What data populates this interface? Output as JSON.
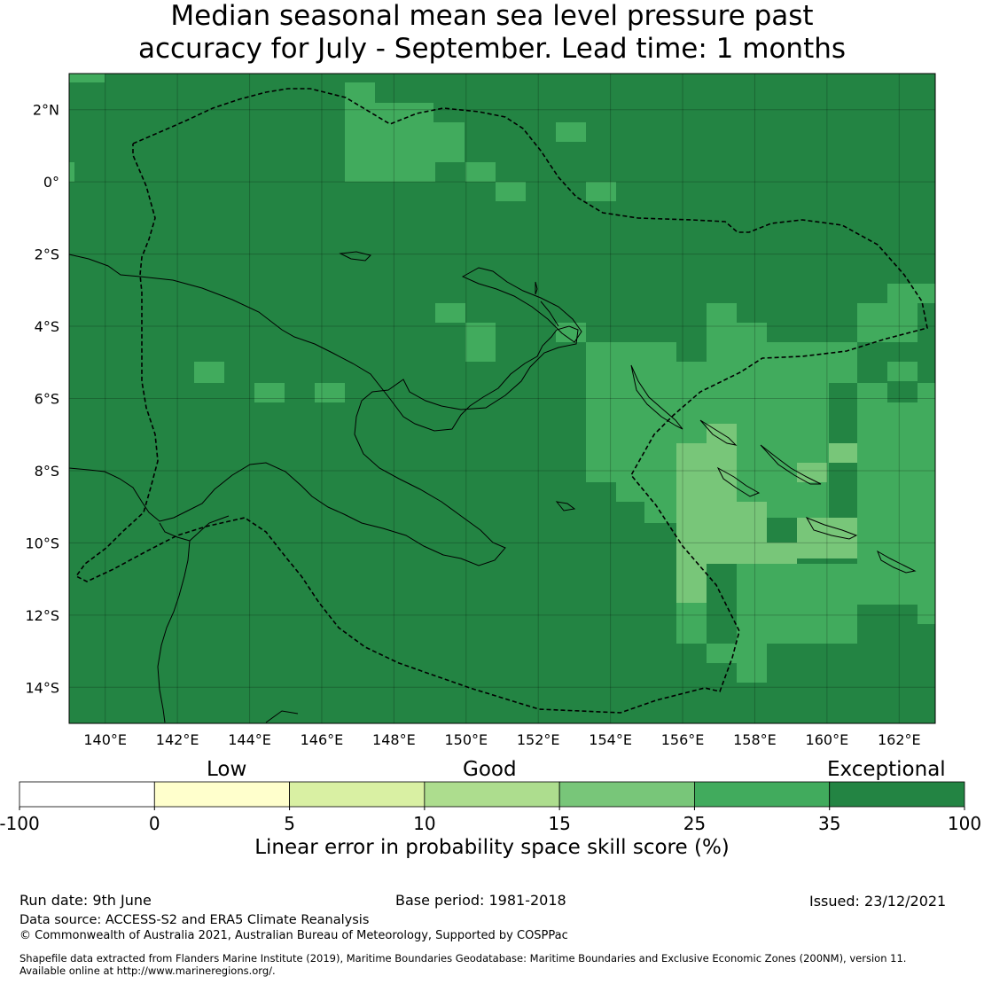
{
  "title_line1": "Median seasonal mean sea level pressure past",
  "title_line2": "accuracy for July - September. Lead time: 1 months",
  "map": {
    "lon_range": [
      139,
      163
    ],
    "lat_range": [
      -15,
      3
    ],
    "lon_ticks": [
      "140°E",
      "142°E",
      "144°E",
      "146°E",
      "148°E",
      "150°E",
      "152°E",
      "154°E",
      "156°E",
      "158°E",
      "160°E",
      "162°E"
    ],
    "lat_ticks": [
      "2°N",
      "0°",
      "2°S",
      "4°S",
      "6°S",
      "8°S",
      "10°S",
      "12°S",
      "14°S"
    ],
    "base_category": "35-100",
    "grid": true,
    "boundary_style": "dashed"
  },
  "colorbar": {
    "category_labels": {
      "low": "Low",
      "good": "Good",
      "exceptional": "Exceptional"
    },
    "tick_labels": [
      "-100",
      "0",
      "5",
      "10",
      "15",
      "25",
      "35",
      "100"
    ],
    "colors": [
      "#ffffff",
      "#ffffcc",
      "#d9f0a3",
      "#addd8e",
      "#78c679",
      "#41ab5d",
      "#238443"
    ],
    "caption": "Linear error in probability space skill score (%)"
  },
  "footer": {
    "run_date": "Run date: 9th June",
    "base_period": "Base period: 1981-2018",
    "issued": "Issued: 23/12/2021",
    "data_source": "Data source: ACCESS-S2 and ERA5 Climate Reanalysis",
    "copyright": "© Commonwealth of Australia 2021, Australian Bureau of Meteorology, Supported by COSPPac",
    "shapefile_line1": "Shapefile data extracted from Flanders Marine Institute (2019), Maritime Boundaries Geodatabase: Maritime Boundaries and Exclusive Economic Zones (200NM), version 11.",
    "shapefile_line2": "Available online at http://www.marineregions.org/."
  }
}
